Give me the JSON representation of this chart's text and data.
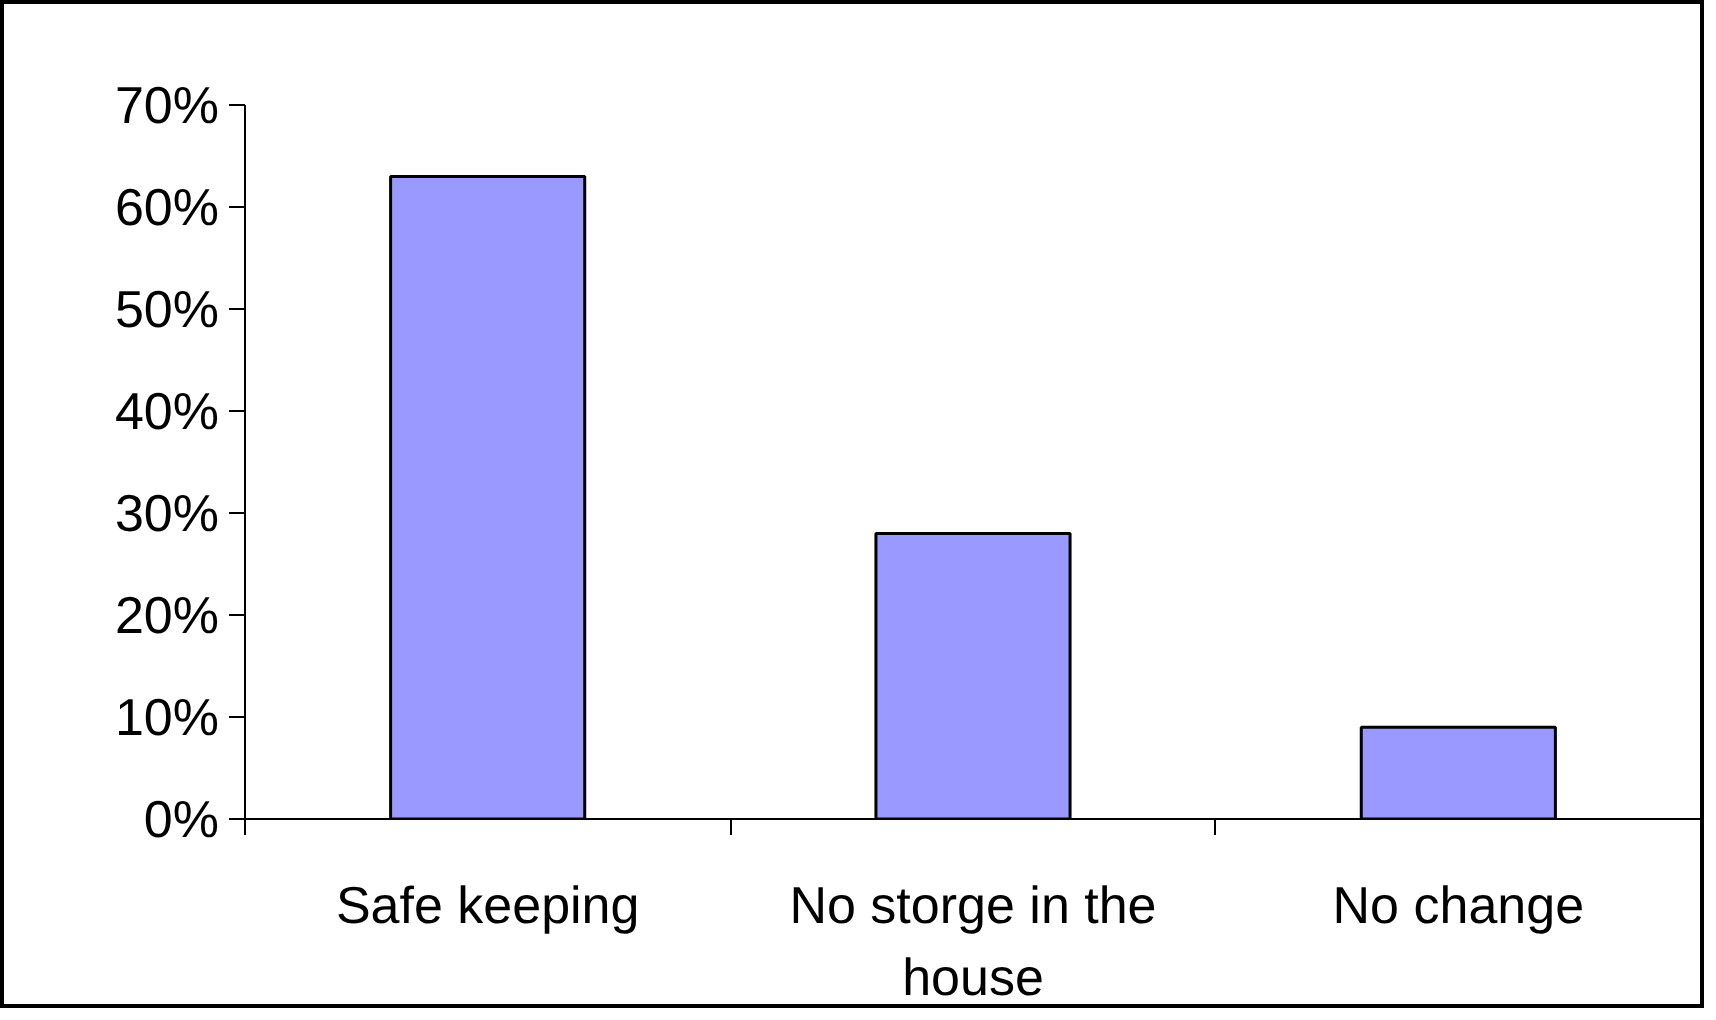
{
  "chart_data": {
    "type": "bar",
    "categories": [
      "Safe keeping",
      "No storge in the house",
      "No change"
    ],
    "values": [
      63,
      28,
      9
    ],
    "color": "#9999ff",
    "ylim": [
      0,
      70
    ],
    "yticks": [
      {
        "value": 0,
        "label": "0%"
      },
      {
        "value": 10,
        "label": "10%"
      },
      {
        "value": 20,
        "label": "20%"
      },
      {
        "value": 30,
        "label": "30%"
      },
      {
        "value": 40,
        "label": "40%"
      },
      {
        "value": 50,
        "label": "50%"
      },
      {
        "value": 60,
        "label": "60%"
      },
      {
        "value": 70,
        "label": "70%"
      }
    ],
    "grid": false
  }
}
